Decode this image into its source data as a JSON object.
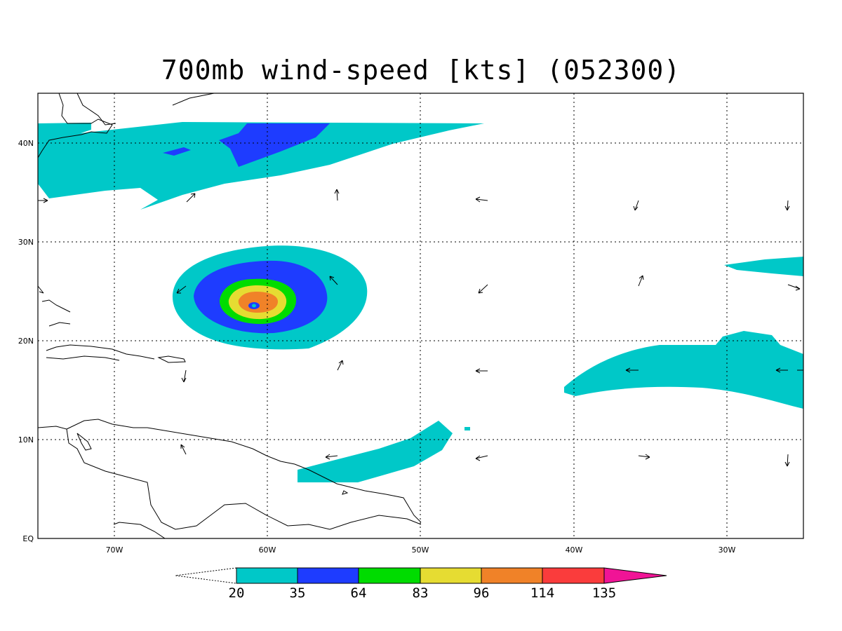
{
  "title": "700mb wind-speed [kts] (052300)",
  "map": {
    "lon_range": [
      -75,
      -25
    ],
    "lat_range": [
      0,
      45
    ],
    "lat_ticks": [
      {
        "value": 40,
        "label": "40N"
      },
      {
        "value": 30,
        "label": "30N"
      },
      {
        "value": 20,
        "label": "20N"
      },
      {
        "value": 10,
        "label": "10N"
      },
      {
        "value": 0,
        "label": "EQ"
      }
    ],
    "lon_ticks": [
      {
        "value": -70,
        "label": "70W"
      },
      {
        "value": -60,
        "label": "60W"
      },
      {
        "value": -50,
        "label": "50W"
      },
      {
        "value": -40,
        "label": "40W"
      },
      {
        "value": -30,
        "label": "30W"
      }
    ],
    "grid": true
  },
  "colorbar": {
    "levels": [
      "20",
      "35",
      "64",
      "83",
      "96",
      "114",
      "135"
    ],
    "colors": [
      "#00c8c8",
      "#1e3cff",
      "#00dc00",
      "#e6dc32",
      "#f08228",
      "#fa3c3c",
      "#f01496"
    ]
  }
}
